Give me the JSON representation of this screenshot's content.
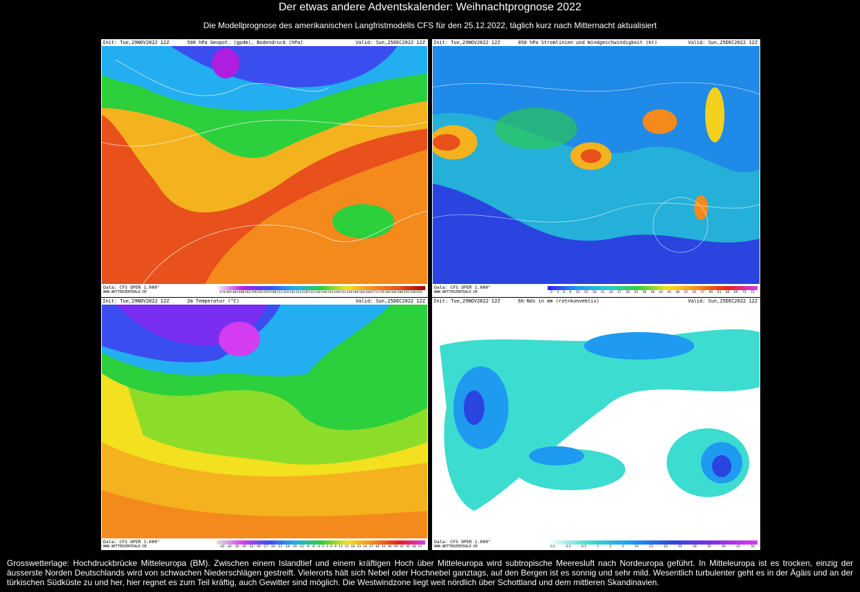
{
  "header": {
    "title": "Der etwas andere Adventskalender: Weihnachtprognose 2022",
    "subtitle": "Die Modellprognose des amerikanischen Langfristmodells CFS für den 25.12.2022, täglich kurz nach Mitternacht aktualisiert"
  },
  "panels": [
    {
      "init": "Init: Tue,29NOV2022 12Z",
      "title": "500 hPa Geopot. (gpdm), Bodendruck (hPa)",
      "valid": "Valid: Sun,25DEC2022 12Z",
      "source": "Data: CFS OPER 1.000°",
      "site": "WWW.WETTERZENTRALE.DE",
      "scale": [
        "476",
        "480",
        "484",
        "488",
        "492",
        "496",
        "500",
        "504",
        "508",
        "512",
        "516",
        "520",
        "524",
        "528",
        "532",
        "536",
        "540",
        "544",
        "548",
        "552",
        "556",
        "560",
        "564",
        "568",
        "572",
        "576",
        "580",
        "584",
        "588",
        "592",
        "596",
        "600"
      ]
    },
    {
      "init": "Init: Tue,29NOV2022 12Z",
      "title": "850 hPa Stromlinien und Windgeschwindigkeit (kt)",
      "valid": "Valid: Sun,25DEC2022 12Z",
      "source": "Data: CFS OPER 1.000°",
      "site": "WWW.WETTERZENTRALE.DE",
      "scale": [
        "0",
        "3",
        "6",
        "9",
        "12",
        "15",
        "18",
        "21",
        "24",
        "27",
        "30",
        "33",
        "36",
        "39",
        "42",
        "45",
        "48",
        "51",
        "54",
        "57",
        "60",
        "63",
        "66",
        "69",
        "72",
        "75"
      ]
    },
    {
      "init": "Init: Tue,29NOV2022 12Z",
      "title": "2m Temperatur (°C)",
      "valid": "Valid: Sun,25DEC2022 12Z",
      "source": "Data: CFS OPER 1.000°",
      "site": "WWW.WETTERZENTRALE.DE",
      "scale": [
        "-45",
        "-42",
        "-39",
        "-36",
        "-33",
        "-30",
        "-27",
        "-24",
        "-21",
        "-18",
        "-15",
        "-12",
        "-9",
        "-6",
        "-3",
        "0",
        "3",
        "6",
        "9",
        "12",
        "15",
        "18",
        "21",
        "24",
        "27",
        "30",
        "33",
        "36",
        "39",
        "42",
        "45",
        "48",
        "51"
      ]
    },
    {
      "init": "Init: Tue,29NOV2022 12Z",
      "title": "6h-Nds in mm (rot=konvektiv)",
      "valid": "Valid: Sun,25DEC2022 12Z",
      "source": "Data: CFS OPER 1.000°",
      "site": "WWW.WETTERZENTRALE.DE",
      "scale": [
        "0.1",
        "0.2",
        "0.5",
        "1",
        "2",
        "5",
        "10",
        "15",
        "20",
        "25",
        "30",
        "35",
        "40",
        "45",
        "50"
      ]
    }
  ],
  "description": "Grosswetterlage: Hochdruckbrücke Mitteleuropa (BM). Zwischen einem Islandtief und einem kräftigen Hoch über Mitteleuropa wird subtropische Meeresluft nach Nordeuropa geführt. In Mitteleuropa ist es trocken, einzig der äusserste Norden Deutschlands wird von schwachen Niederschlägen gestreift. Vielerorts hält sich Nebel oder Hochnebel ganztags, auf den Bergen ist es sonnig und sehr mild. Wesentlich turbulenter geht es in der Ägäis und an der türkischen Südküste zu und her, hier regnet es zum Teil kräftig, auch Gewitter sind möglich. Die Westwindzone liegt weit nördlich über Schottland und dem mittleren Skandinavien."
}
